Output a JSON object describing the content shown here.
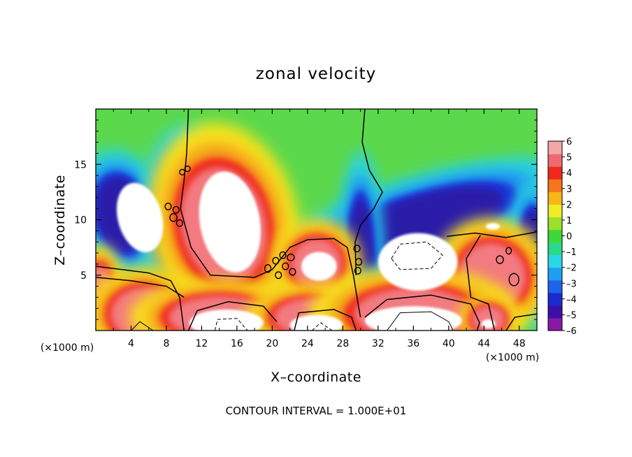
{
  "chart_data": {
    "type": "heatmap",
    "title": "zonal velocity",
    "xlabel": "X–coordinate",
    "ylabel": "Z–coordinate",
    "x_unit_label": "(×1000 m)",
    "xlim": [
      0,
      50
    ],
    "ylim": [
      0,
      20
    ],
    "x_ticks": [
      4,
      8,
      12,
      16,
      20,
      24,
      28,
      32,
      36,
      40,
      44,
      48
    ],
    "x_tick_labels": [
      "4",
      "8",
      "12",
      "16",
      "20",
      "24",
      "28",
      "32",
      "36",
      "40",
      "44",
      "48"
    ],
    "y_ticks": [
      5,
      10,
      15
    ],
    "y_tick_labels": [
      "5",
      "10",
      "15"
    ],
    "colorbar": {
      "min": -6,
      "max": 6,
      "tick_labels": [
        "6",
        "5",
        "4",
        "3",
        "2",
        "1",
        "0",
        "–1",
        "–2",
        "–3",
        "–4",
        "–5",
        "–6"
      ],
      "colors": [
        "#8a1aa6",
        "#3a10a8",
        "#1a2ccf",
        "#1e63e8",
        "#1f9ef2",
        "#29d8e6",
        "#2bd98a",
        "#3ed83a",
        "#9be02a",
        "#f0ec26",
        "#f7b619",
        "#f5761b",
        "#f0281e",
        "#ef6a6f",
        "#f5a7a8"
      ]
    },
    "background_field": "#5cd84c",
    "features": [
      {
        "shape": "blob",
        "sign": "negative",
        "cx": 3,
        "cy": 10.5,
        "rx": 3,
        "ry": 3.5,
        "angle": -15
      },
      {
        "shape": "blob",
        "sign": "negative",
        "cx": 10,
        "cy": 10,
        "rx": 3,
        "ry": 5,
        "angle": 0
      },
      {
        "shape": "blob",
        "sign": "negative",
        "cx": 36,
        "cy": 9.5,
        "rx": 11,
        "ry": 2.5,
        "angle": -18
      },
      {
        "shape": "blob",
        "sign": "negative",
        "cx": 49.5,
        "cy": 7,
        "rx": 1.5,
        "ry": 4,
        "angle": 0
      },
      {
        "shape": "blob",
        "sign": "negative",
        "cx": 30,
        "cy": 6,
        "rx": 1.5,
        "ry": 6,
        "angle": 0
      },
      {
        "shape": "blob",
        "sign": "negative",
        "cx": 19.5,
        "cy": 2.5,
        "rx": 2,
        "ry": 2.5,
        "angle": 0
      },
      {
        "shape": "blob",
        "sign": "negative",
        "cx": 35,
        "cy": 3,
        "rx": 6,
        "ry": 1.5,
        "angle": 0
      },
      {
        "shape": "blob",
        "sign": "positive",
        "cx": 14.5,
        "cy": 9.5,
        "rx": 5,
        "ry": 5.5,
        "angle": -12
      },
      {
        "shape": "blob",
        "sign": "positive",
        "cx": 25,
        "cy": 6,
        "rx": 3,
        "ry": 2.4,
        "angle": 0
      },
      {
        "shape": "blob",
        "sign": "positive",
        "cx": 45,
        "cy": 5,
        "rx": 4,
        "ry": 3,
        "angle": 30
      },
      {
        "shape": "blob",
        "sign": "positive",
        "cx": 0.5,
        "cy": 3.5,
        "rx": 1.5,
        "ry": 2.5,
        "angle": 0
      },
      {
        "shape": "blob",
        "sign": "positive",
        "cx": 5.5,
        "cy": 1.5,
        "rx": 4,
        "ry": 2.5,
        "angle": 0
      },
      {
        "shape": "blob",
        "sign": "positive",
        "cx": 14,
        "cy": 1.2,
        "rx": 6,
        "ry": 2,
        "angle": 0
      },
      {
        "shape": "blob",
        "sign": "positive",
        "cx": 24.5,
        "cy": 1.2,
        "rx": 4.5,
        "ry": 1.8,
        "angle": 0
      },
      {
        "shape": "blob",
        "sign": "positive",
        "cx": 36,
        "cy": 1.5,
        "rx": 7,
        "ry": 2.5,
        "angle": 0
      },
      {
        "shape": "blob",
        "sign": "positive",
        "cx": 44.5,
        "cy": 1,
        "rx": 2,
        "ry": 1.3,
        "angle": 0
      },
      {
        "shape": "core",
        "cx": 5,
        "cy": 10.2,
        "rx": 2.5,
        "ry": 3.2,
        "angle": -15
      },
      {
        "shape": "core",
        "cx": 15.2,
        "cy": 9.8,
        "rx": 3.4,
        "ry": 4.6,
        "angle": -10
      },
      {
        "shape": "core",
        "cx": 25.3,
        "cy": 5.8,
        "rx": 2,
        "ry": 1.3,
        "angle": 0
      },
      {
        "shape": "core",
        "cx": 36.5,
        "cy": 6.2,
        "rx": 4.5,
        "ry": 2.6,
        "angle": 0
      },
      {
        "shape": "core",
        "cx": 14.8,
        "cy": 0.7,
        "rx": 4.2,
        "ry": 1.2,
        "angle": 0
      },
      {
        "shape": "core",
        "cx": 25,
        "cy": 0.5,
        "rx": 3,
        "ry": 0.9,
        "angle": 0
      },
      {
        "shape": "core",
        "cx": 36,
        "cy": 0.9,
        "rx": 5.5,
        "ry": 1.3,
        "angle": 0
      },
      {
        "shape": "core",
        "cx": 44.5,
        "cy": 0.6,
        "rx": 0.8,
        "ry": 0.4,
        "angle": 0
      },
      {
        "shape": "core",
        "cx": 45,
        "cy": 9.4,
        "rx": 0.8,
        "ry": 0.3,
        "angle": 0
      }
    ],
    "contour_zero_lines": [
      [
        [
          0,
          5.8
        ],
        [
          3,
          5.5
        ],
        [
          6,
          5.2
        ],
        [
          8.5,
          4.5
        ],
        [
          9.5,
          3
        ],
        [
          10,
          0
        ]
      ],
      [
        [
          10.5,
          20
        ],
        [
          10.3,
          16
        ],
        [
          10,
          13.5
        ],
        [
          9.6,
          11
        ],
        [
          10.8,
          7.5
        ],
        [
          13,
          5
        ],
        [
          18,
          4.8
        ],
        [
          20,
          5.5
        ],
        [
          21,
          6.5
        ],
        [
          22,
          7.5
        ],
        [
          24,
          8.2
        ],
        [
          27,
          8.3
        ],
        [
          28.5,
          7.5
        ],
        [
          29.2,
          5
        ],
        [
          29.6,
          3
        ],
        [
          30,
          1.2
        ]
      ],
      [
        [
          30.5,
          20
        ],
        [
          30.2,
          17
        ],
        [
          31,
          14.5
        ],
        [
          32.5,
          12.5
        ],
        [
          31.5,
          11
        ],
        [
          30,
          9.5
        ],
        [
          29.4,
          8
        ],
        [
          29.5,
          5
        ]
      ],
      [
        [
          0,
          4.8
        ],
        [
          4,
          4.5
        ],
        [
          8,
          4
        ],
        [
          10,
          3
        ]
      ],
      [
        [
          10.5,
          0
        ],
        [
          11.5,
          1.8
        ],
        [
          15,
          2.6
        ],
        [
          19,
          2.2
        ],
        [
          20.5,
          0.8
        ]
      ],
      [
        [
          22.5,
          0
        ],
        [
          23,
          1.6
        ],
        [
          27,
          1.9
        ],
        [
          29,
          1.2
        ],
        [
          29.5,
          0
        ]
      ],
      [
        [
          30.5,
          1.2
        ],
        [
          33,
          2.8
        ],
        [
          38,
          3.2
        ],
        [
          42.5,
          2.4
        ],
        [
          43.5,
          0.7
        ],
        [
          43.2,
          0
        ]
      ],
      [
        [
          39.8,
          8.5
        ],
        [
          43,
          8.8
        ],
        [
          46.5,
          8.4
        ],
        [
          50,
          8.9
        ]
      ],
      [
        [
          43.6,
          8.6
        ],
        [
          42,
          6.5
        ],
        [
          42.5,
          3
        ],
        [
          44.5,
          2.4
        ],
        [
          45.2,
          0
        ]
      ],
      [
        [
          46.5,
          0
        ],
        [
          47.5,
          1.2
        ],
        [
          50,
          1.5
        ]
      ]
    ],
    "contour_negative_lines": [
      [
        [
          33.5,
          6.5
        ],
        [
          34.5,
          7.8
        ],
        [
          37.5,
          8
        ],
        [
          39.3,
          6.8
        ],
        [
          38,
          5.6
        ],
        [
          34.5,
          5.5
        ],
        [
          33.5,
          6.5
        ]
      ],
      [
        [
          13.5,
          0
        ],
        [
          13.8,
          1
        ],
        [
          16,
          1.1
        ],
        [
          17.2,
          0
        ]
      ],
      [
        [
          24.5,
          0
        ],
        [
          25.5,
          0.7
        ],
        [
          26.8,
          0
        ]
      ]
    ],
    "contour_positive_lines": [
      [
        [
          4,
          0
        ],
        [
          5,
          0.8
        ],
        [
          6.5,
          0
        ]
      ],
      [
        [
          33,
          0
        ],
        [
          34.5,
          1.6
        ],
        [
          38,
          1.7
        ],
        [
          40,
          0.8
        ],
        [
          40.5,
          0
        ]
      ]
    ],
    "contour_loops": [
      {
        "cx": 8.2,
        "cy": 11.2,
        "rx": 0.35,
        "ry": 0.3
      },
      {
        "cx": 9.1,
        "cy": 10.9,
        "rx": 0.35,
        "ry": 0.3
      },
      {
        "cx": 8.8,
        "cy": 10.2,
        "rx": 0.4,
        "ry": 0.35
      },
      {
        "cx": 9.5,
        "cy": 9.7,
        "rx": 0.35,
        "ry": 0.3
      },
      {
        "cx": 9.8,
        "cy": 14.3,
        "rx": 0.3,
        "ry": 0.25
      },
      {
        "cx": 10.4,
        "cy": 14.6,
        "rx": 0.3,
        "ry": 0.25
      },
      {
        "cx": 19.5,
        "cy": 5.6,
        "rx": 0.35,
        "ry": 0.35
      },
      {
        "cx": 20.4,
        "cy": 6.3,
        "rx": 0.35,
        "ry": 0.3
      },
      {
        "cx": 21.2,
        "cy": 6.8,
        "rx": 0.35,
        "ry": 0.3
      },
      {
        "cx": 22.1,
        "cy": 6.6,
        "rx": 0.4,
        "ry": 0.3
      },
      {
        "cx": 21.5,
        "cy": 5.8,
        "rx": 0.35,
        "ry": 0.3
      },
      {
        "cx": 22.3,
        "cy": 5.3,
        "rx": 0.35,
        "ry": 0.3
      },
      {
        "cx": 20.7,
        "cy": 5,
        "rx": 0.35,
        "ry": 0.3
      },
      {
        "cx": 29.6,
        "cy": 7.4,
        "rx": 0.35,
        "ry": 0.3
      },
      {
        "cx": 29.8,
        "cy": 6.2,
        "rx": 0.35,
        "ry": 0.3
      },
      {
        "cx": 29.7,
        "cy": 5.4,
        "rx": 0.35,
        "ry": 0.3
      },
      {
        "cx": 47.4,
        "cy": 4.6,
        "rx": 0.55,
        "ry": 0.55
      },
      {
        "cx": 45.8,
        "cy": 6.4,
        "rx": 0.4,
        "ry": 0.35
      },
      {
        "cx": 46.8,
        "cy": 7.2,
        "rx": 0.3,
        "ry": 0.3
      }
    ],
    "footer_text": "CONTOUR INTERVAL = 1.000E+01"
  }
}
